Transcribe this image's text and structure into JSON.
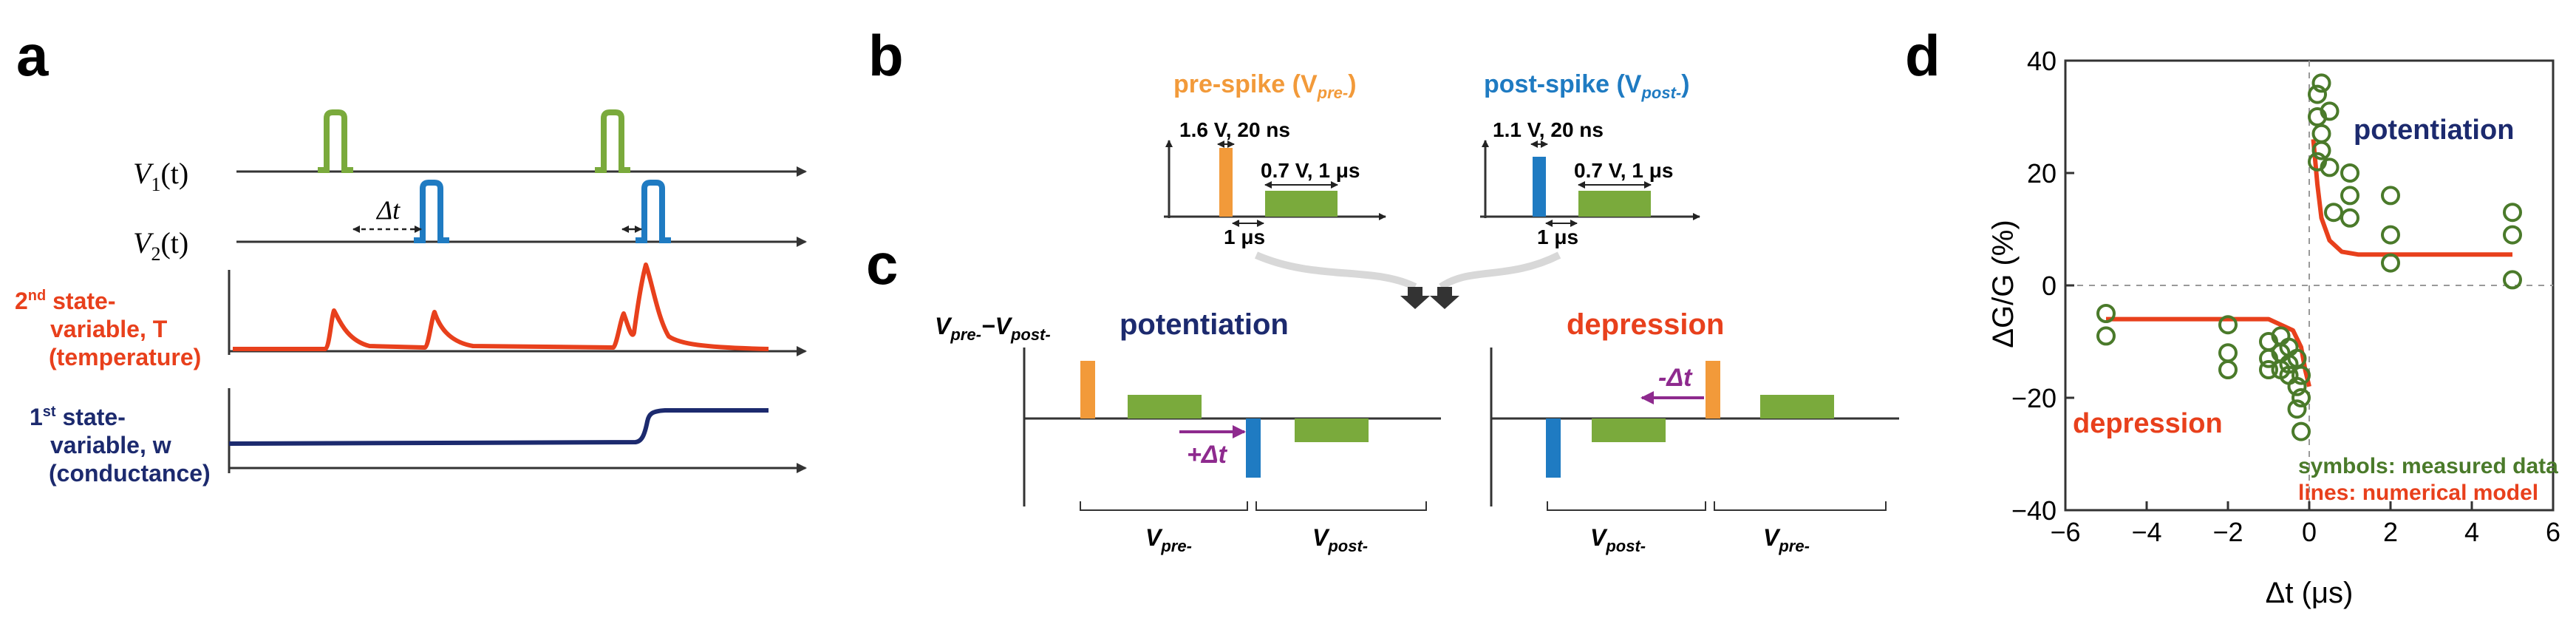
{
  "colors": {
    "green": "#7aaa3c",
    "blue": "#1f7bc2",
    "orange": "#f29a3a",
    "red": "#e8401c",
    "navy": "#1c2a6e",
    "purple": "#8e2a8e",
    "dark_green": "#4a7a2a",
    "axis": "#333333",
    "grid": "#bbbbbb"
  },
  "panel_a": {
    "letter": "a",
    "v1_label": "V",
    "v1_sub": "1",
    "v1_arg": "(t)",
    "v2_label": "V",
    "v2_sub": "2",
    "v2_arg": "(t)",
    "dt_label": "Δt",
    "state2_line1_sup": "nd",
    "state2_line1_pre": "2",
    "state2_line1_post": " state-",
    "state2_line2": "variable, T",
    "state2_line3": "(temperature)",
    "state1_line1_pre": "1",
    "state1_line1_sup": "st",
    "state1_line1_post": " state-",
    "state1_line2": "variable, w",
    "state1_line3": "(conductance)"
  },
  "panel_b": {
    "letter": "b",
    "pre_title": "pre-spike (V",
    "pre_title_sub": "pre-",
    "pre_title_end": ")",
    "post_title": "post-spike (V",
    "post_title_sub": "post-",
    "post_title_end": ")",
    "pre_pulse1": "1.6 V, 20 ns",
    "pre_pulse2": "0.7 V, 1 μs",
    "pre_gap": "1 μs",
    "post_pulse1": "1.1 V, 20 ns",
    "post_pulse2": "0.7 V, 1 μs",
    "post_gap": "1 μs"
  },
  "panel_c": {
    "letter": "c",
    "ylabel_v1": "V",
    "ylabel_v1_sub": "pre-",
    "ylabel_dash": "−V",
    "ylabel_v2_sub": "post-",
    "potentiation_title": "potentiation",
    "depression_title": "depression",
    "pot_dt": "+Δt",
    "dep_dt": "-Δt",
    "pot_seg1": "V",
    "pot_seg1_sub": "pre-",
    "pot_seg2": "V",
    "pot_seg2_sub": "post-",
    "dep_seg1": "V",
    "dep_seg1_sub": "post-",
    "dep_seg2": "V",
    "dep_seg2_sub": "pre-"
  },
  "panel_d": {
    "letter": "d",
    "potentiation_label": "potentiation",
    "depression_label": "depression",
    "legend_line1": "symbols: measured data",
    "legend_line2": "lines: numerical model"
  },
  "chart_data": {
    "type": "scatter",
    "title": "",
    "xlabel": "Δt (μs)",
    "ylabel": "ΔG/G (%)",
    "xlim": [
      -6,
      6
    ],
    "ylim": [
      -40,
      40
    ],
    "xticks": [
      -6,
      -4,
      -2,
      0,
      2,
      4,
      6
    ],
    "yticks": [
      -40,
      -20,
      0,
      20,
      40
    ],
    "series": [
      {
        "name": "measured data",
        "marker": "open-circle",
        "points": [
          [
            -5,
            -5
          ],
          [
            -5,
            -9
          ],
          [
            -2,
            -7
          ],
          [
            -2,
            -12
          ],
          [
            -2,
            -15
          ],
          [
            -1,
            -10
          ],
          [
            -1,
            -13
          ],
          [
            -1,
            -15
          ],
          [
            -0.7,
            -9
          ],
          [
            -0.7,
            -12
          ],
          [
            -0.7,
            -15
          ],
          [
            -0.5,
            -11
          ],
          [
            -0.5,
            -14
          ],
          [
            -0.5,
            -16
          ],
          [
            -0.3,
            -13
          ],
          [
            -0.3,
            -18
          ],
          [
            -0.3,
            -22
          ],
          [
            -0.2,
            -16
          ],
          [
            -0.2,
            -20
          ],
          [
            -0.2,
            -26
          ],
          [
            0.2,
            34
          ],
          [
            0.2,
            30
          ],
          [
            0.2,
            22
          ],
          [
            0.3,
            36
          ],
          [
            0.3,
            27
          ],
          [
            0.3,
            24
          ],
          [
            0.5,
            31
          ],
          [
            0.5,
            21
          ],
          [
            0.6,
            13
          ],
          [
            1,
            20
          ],
          [
            1,
            16
          ],
          [
            1,
            12
          ],
          [
            2,
            16
          ],
          [
            2,
            9
          ],
          [
            2,
            4
          ],
          [
            5,
            13
          ],
          [
            5,
            9
          ],
          [
            5,
            1
          ]
        ]
      },
      {
        "name": "numerical model",
        "type": "line",
        "segments": [
          [
            [
              -5,
              -6
            ],
            [
              -1,
              -6
            ],
            [
              -0.4,
              -8
            ],
            [
              -0.2,
              -11
            ],
            [
              -0.1,
              -15
            ],
            [
              0,
              -18
            ]
          ],
          [
            [
              0.1,
              26
            ],
            [
              0.2,
              18
            ],
            [
              0.3,
              12
            ],
            [
              0.5,
              8
            ],
            [
              0.8,
              6
            ],
            [
              1.2,
              5.5
            ],
            [
              5,
              5.5
            ]
          ]
        ]
      }
    ]
  }
}
